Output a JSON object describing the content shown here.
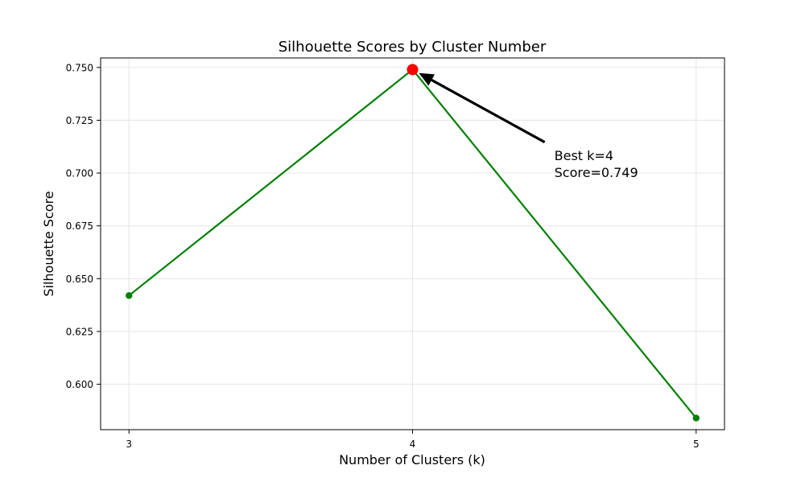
{
  "chart_data": {
    "type": "line",
    "title": "Silhouette Scores by Cluster Number",
    "xlabel": "Number of Clusters (k)",
    "ylabel": "Silhouette Score",
    "x": [
      3,
      4,
      5
    ],
    "x_ticks": [
      "3",
      "4",
      "5"
    ],
    "xlim": [
      2.9,
      5.1
    ],
    "y": [
      0.642,
      0.749,
      0.584
    ],
    "y_ticks": [
      "0.600",
      "0.625",
      "0.650",
      "0.675",
      "0.700",
      "0.725",
      "0.750"
    ],
    "ylim": [
      0.5785,
      0.7545
    ],
    "grid": true,
    "line_color": "#008000",
    "highlight": {
      "x": 4,
      "y": 0.749,
      "color": "#ff0000"
    },
    "annotation": {
      "lines": [
        "Best k=4",
        "Score=0.749"
      ],
      "text_anchor_x": 4.5,
      "text_anchor_y": 0.715,
      "arrow_color": "#000000"
    }
  }
}
